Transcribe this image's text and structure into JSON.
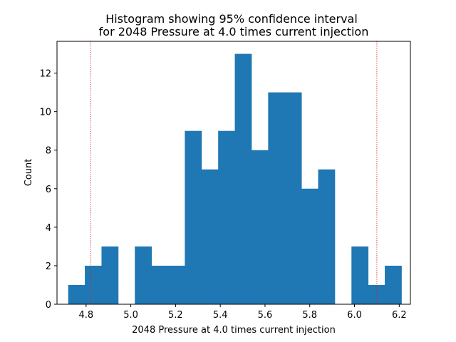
{
  "chart_data": {
    "type": "bar",
    "title": "Histogram showing 95% confidence interval",
    "subtitle": "for 2048 Pressure at 4.0 times current injection",
    "xlabel": "2048 Pressure at 4.0 times current injection",
    "ylabel": "Count",
    "xlim": [
      4.67,
      6.25
    ],
    "ylim": [
      0,
      13.65
    ],
    "x_ticks": [
      4.8,
      5.0,
      5.2,
      5.4,
      5.6,
      5.8,
      6.0,
      6.2
    ],
    "x_tick_labels": [
      "4.8",
      "5.0",
      "5.2",
      "5.4",
      "5.6",
      "5.8",
      "6.0",
      "6.2"
    ],
    "y_ticks": [
      0,
      2,
      4,
      6,
      8,
      10,
      12
    ],
    "y_tick_labels": [
      "0",
      "2",
      "4",
      "6",
      "8",
      "10",
      "12"
    ],
    "bin_start": 4.72,
    "bin_width": 0.0745,
    "counts": [
      1,
      2,
      3,
      0,
      3,
      2,
      2,
      9,
      7,
      9,
      13,
      8,
      11,
      11,
      6,
      7,
      0,
      3,
      1,
      2
    ],
    "bar_color": "#1f77b4",
    "confidence_interval": [
      4.82,
      6.1
    ],
    "ci_line_color": "#d62728",
    "grid": false
  }
}
